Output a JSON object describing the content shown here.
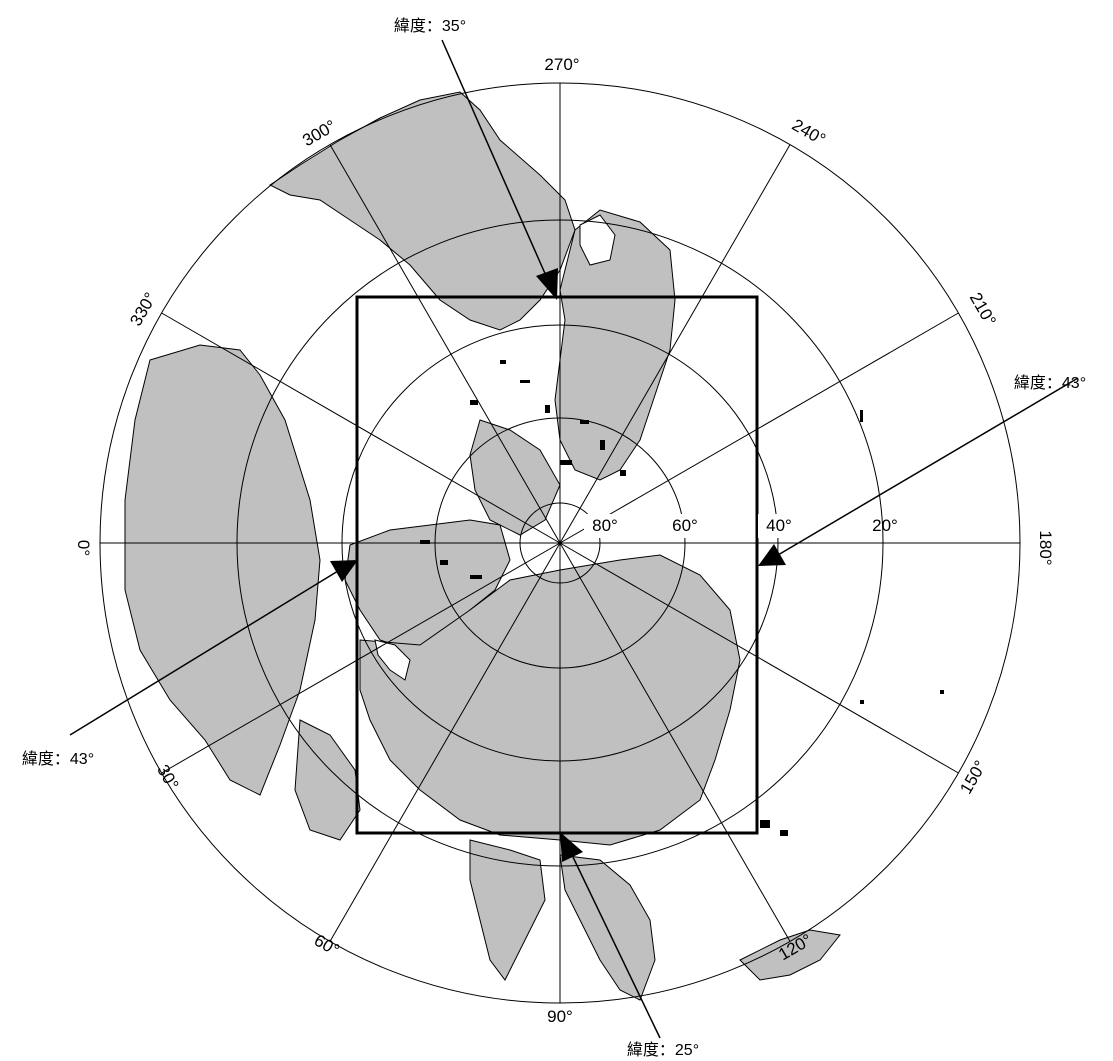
{
  "map": {
    "projection": "north polar",
    "longitude_labels": [
      "0°",
      "30°",
      "60°",
      "90°",
      "120°",
      "150°",
      "180°",
      "210°",
      "240°",
      "270°",
      "300°",
      "330°"
    ],
    "latitude_labels": [
      "80°",
      "60°",
      "40°",
      "20°"
    ],
    "bounding_box": {
      "north": "緯度：43°",
      "west": "緯度：43°",
      "top": "緯度：35°",
      "bottom": "緯度：25°"
    },
    "land_color": "#c0c0c0",
    "line_color": "#000000"
  }
}
